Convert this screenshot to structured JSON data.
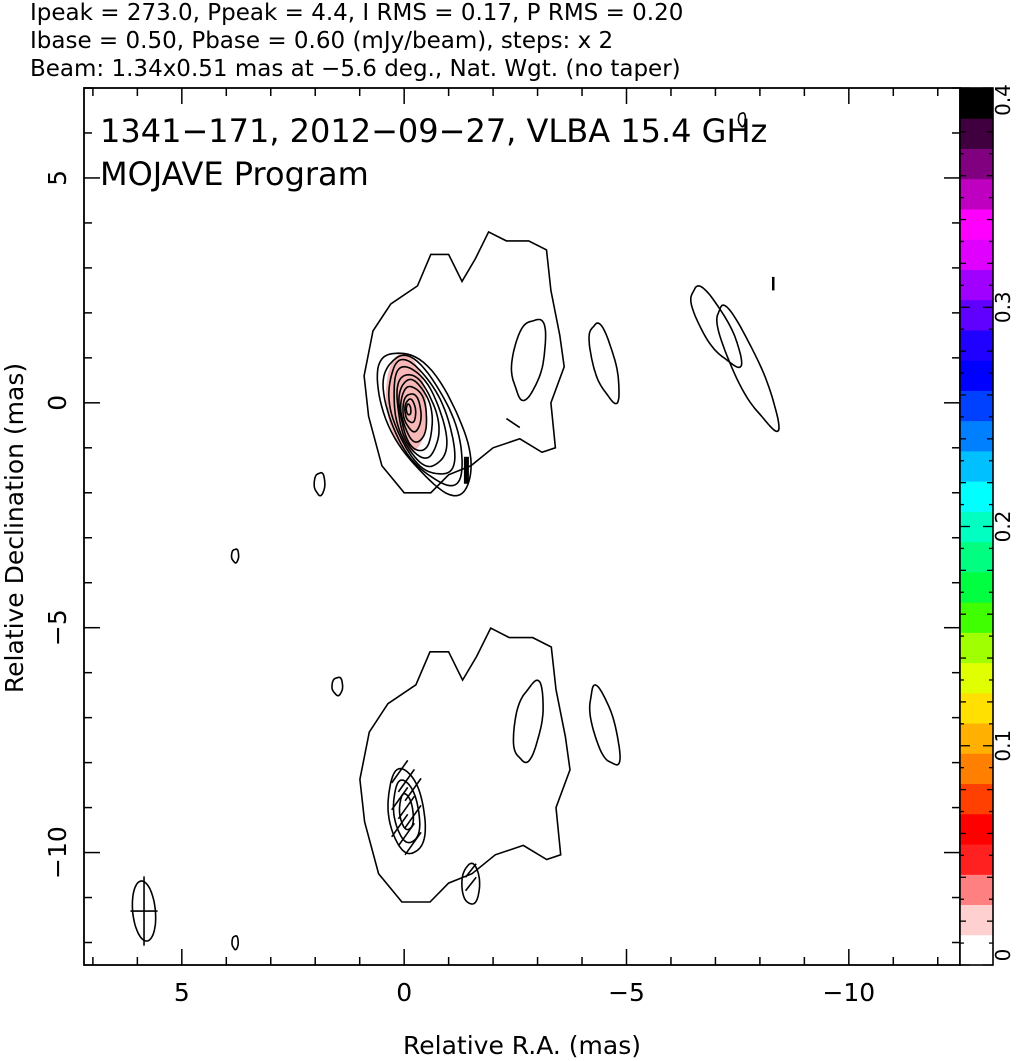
{
  "header": {
    "lines": [
      "Ipeak = 273.0, Ppeak = 4.4, I RMS = 0.17, P RMS = 0.20",
      "Ibase = 0.50, Pbase = 0.60 (mJy/beam), steps: x 2",
      "Beam: 1.34x0.51 mas at −5.6 deg., Nat. Wgt. (no taper)"
    ]
  },
  "chart_data": {
    "type": "contour",
    "title": "1341−171, 2012−09−27, VLBA 15.4 GHz",
    "subtitle": "MOJAVE Program",
    "xlabel": "Relative R.A. (mas)",
    "ylabel": "Relative Declination (mas)",
    "xlim": [
      7.2,
      -12.5
    ],
    "ylim": [
      -12.5,
      7.0
    ],
    "x_major_ticks": [
      5,
      0,
      -5,
      -10
    ],
    "x_tick_labels": [
      "5",
      "0",
      "−5",
      "−10"
    ],
    "y_major_ticks": [
      5,
      0,
      -5,
      -10
    ],
    "y_tick_labels": [
      "5",
      "0",
      "−5",
      "−10"
    ],
    "grid": false,
    "core": {
      "x": 0,
      "y": 0,
      "Ipeak_mJy_per_beam": 273.0
    },
    "polarization_peak_mJy_per_beam": 4.4,
    "contour_base_mJy_per_beam": 0.5,
    "contour_step_factor": 2,
    "num_core_contours": 10,
    "beam": {
      "major_mas": 1.34,
      "minor_mas": 0.51,
      "pa_deg": -5.6,
      "weighting": "Nat. Wgt. (no taper)"
    },
    "fractional_pol_panel": {
      "offset_dec_mas": -9.0
    },
    "colorbar": {
      "min": 0,
      "max": 0.4,
      "tick_values": [
        0,
        0.1,
        0.2,
        0.3,
        0.4
      ],
      "tick_labels": [
        "0",
        "0.1",
        "0.2",
        "0.3",
        "0.4"
      ],
      "colors": [
        "#ffffff",
        "#ffd0d0",
        "#ff8080",
        "#ff2020",
        "#ff0000",
        "#ff4000",
        "#ff8000",
        "#ffb000",
        "#ffe000",
        "#e0ff00",
        "#a0ff00",
        "#40ff00",
        "#00ff40",
        "#00ff80",
        "#00ffc0",
        "#00ffff",
        "#00c0ff",
        "#0080ff",
        "#0040ff",
        "#0000ff",
        "#2000ff",
        "#6000ff",
        "#a000ff",
        "#e000ff",
        "#ff00ff",
        "#c000c0",
        "#800080",
        "#400040",
        "#000000"
      ]
    },
    "colors": {
      "contour": "#000000",
      "pol_fill": "#f7b8b8"
    }
  }
}
